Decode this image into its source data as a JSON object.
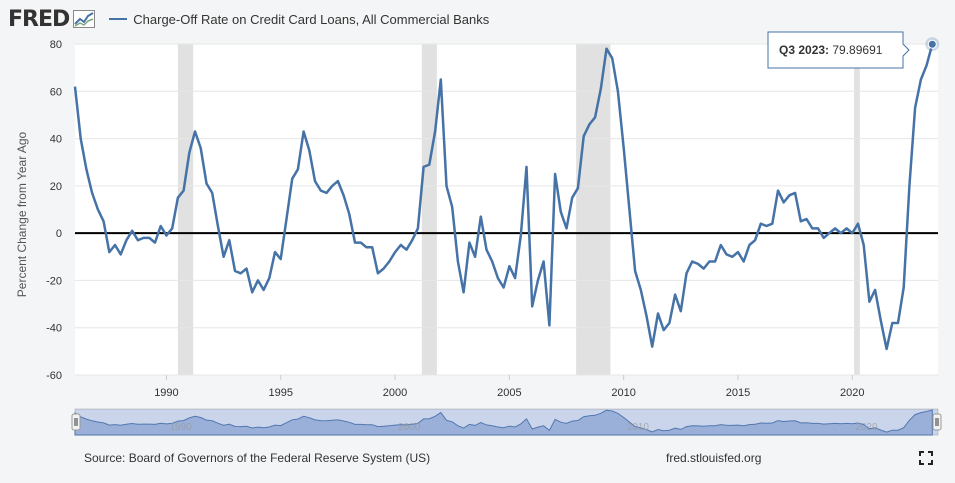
{
  "header": {
    "logo_text": "FRED",
    "legend_label": "Charge-Off Rate on Credit Card Loans, All Commercial Banks"
  },
  "colors": {
    "series": "#4572a7",
    "recession": "#e1e1e1",
    "plot_bg": "#ffffff",
    "zero_line": "#000000"
  },
  "icons": {
    "logo_graph": "line-graph-icon",
    "fullscreen": "fullscreen-icon",
    "left_handle": "navigator-left-handle",
    "right_handle": "navigator-right-handle"
  },
  "tooltip": {
    "label": "Q3 2023:",
    "value": "79.89691"
  },
  "footer": {
    "source": "Source: Board of Governors of the Federal Reserve System (US)",
    "site": "fred.stlouisfed.org"
  },
  "chart_data": {
    "type": "line",
    "title": "",
    "xlabel": "",
    "ylabel": "Percent Change from Year Ago",
    "xlim": [
      1986.0,
      2023.75
    ],
    "ylim": [
      -60,
      80
    ],
    "y_ticks": [
      80,
      60,
      40,
      20,
      0,
      -20,
      -40,
      -60
    ],
    "x_ticks": [
      1990,
      1995,
      2000,
      2005,
      2010,
      2015,
      2020
    ],
    "grid": true,
    "legend": "top-left",
    "recessions": [
      [
        1990.5,
        1991.17
      ],
      [
        2001.17,
        2001.83
      ],
      [
        2007.92,
        2009.42
      ],
      [
        2020.08,
        2020.33
      ]
    ],
    "navigator_labels": [
      "1990",
      "2000",
      "2010",
      "2020"
    ],
    "series": [
      {
        "name": "Charge-Off Rate on Credit Card Loans, All Commercial Banks",
        "points": [
          [
            1986.0,
            62
          ],
          [
            1986.25,
            40
          ],
          [
            1986.5,
            27
          ],
          [
            1986.75,
            17
          ],
          [
            1987.0,
            10
          ],
          [
            1987.25,
            5
          ],
          [
            1987.5,
            -8
          ],
          [
            1987.75,
            -5
          ],
          [
            1988.0,
            -9
          ],
          [
            1988.25,
            -3
          ],
          [
            1988.5,
            1
          ],
          [
            1988.75,
            -3
          ],
          [
            1989.0,
            -2
          ],
          [
            1989.25,
            -2
          ],
          [
            1989.5,
            -4
          ],
          [
            1989.75,
            3
          ],
          [
            1990.0,
            -1
          ],
          [
            1990.25,
            2
          ],
          [
            1990.5,
            15
          ],
          [
            1990.75,
            18
          ],
          [
            1991.0,
            34
          ],
          [
            1991.25,
            43
          ],
          [
            1991.5,
            36
          ],
          [
            1991.75,
            21
          ],
          [
            1992.0,
            17
          ],
          [
            1992.25,
            3
          ],
          [
            1992.5,
            -10
          ],
          [
            1992.75,
            -3
          ],
          [
            1993.0,
            -16
          ],
          [
            1993.25,
            -17
          ],
          [
            1993.5,
            -15
          ],
          [
            1993.75,
            -25
          ],
          [
            1994.0,
            -20
          ],
          [
            1994.25,
            -24
          ],
          [
            1994.5,
            -19
          ],
          [
            1994.75,
            -8
          ],
          [
            1995.0,
            -11
          ],
          [
            1995.25,
            6
          ],
          [
            1995.5,
            23
          ],
          [
            1995.75,
            27
          ],
          [
            1996.0,
            43
          ],
          [
            1996.25,
            35
          ],
          [
            1996.5,
            22
          ],
          [
            1996.75,
            18
          ],
          [
            1997.0,
            17
          ],
          [
            1997.25,
            20
          ],
          [
            1997.5,
            22
          ],
          [
            1997.75,
            16
          ],
          [
            1998.0,
            8
          ],
          [
            1998.25,
            -4
          ],
          [
            1998.5,
            -4
          ],
          [
            1998.75,
            -6
          ],
          [
            1999.0,
            -6
          ],
          [
            1999.25,
            -17
          ],
          [
            1999.5,
            -15
          ],
          [
            1999.75,
            -12
          ],
          [
            2000.0,
            -8
          ],
          [
            2000.25,
            -5
          ],
          [
            2000.5,
            -7
          ],
          [
            2000.75,
            -3
          ],
          [
            2001.0,
            2
          ],
          [
            2001.25,
            28
          ],
          [
            2001.5,
            29
          ],
          [
            2001.75,
            43
          ],
          [
            2002.0,
            65
          ],
          [
            2002.25,
            20
          ],
          [
            2002.5,
            11
          ],
          [
            2002.75,
            -12
          ],
          [
            2003.0,
            -25
          ],
          [
            2003.25,
            -4
          ],
          [
            2003.5,
            -10
          ],
          [
            2003.75,
            7
          ],
          [
            2004.0,
            -7
          ],
          [
            2004.25,
            -12
          ],
          [
            2004.5,
            -19
          ],
          [
            2004.75,
            -23
          ],
          [
            2005.0,
            -14
          ],
          [
            2005.25,
            -19
          ],
          [
            2005.5,
            -1
          ],
          [
            2005.75,
            28
          ],
          [
            2006.0,
            -31
          ],
          [
            2006.25,
            -20
          ],
          [
            2006.5,
            -12
          ],
          [
            2006.75,
            -39
          ],
          [
            2007.0,
            25
          ],
          [
            2007.25,
            9
          ],
          [
            2007.5,
            2
          ],
          [
            2007.75,
            15
          ],
          [
            2008.0,
            19
          ],
          [
            2008.25,
            41
          ],
          [
            2008.5,
            46
          ],
          [
            2008.75,
            49
          ],
          [
            2009.0,
            61
          ],
          [
            2009.25,
            78
          ],
          [
            2009.5,
            74
          ],
          [
            2009.75,
            60
          ],
          [
            2010.0,
            36
          ],
          [
            2010.25,
            10
          ],
          [
            2010.5,
            -16
          ],
          [
            2010.75,
            -24
          ],
          [
            2011.0,
            -35
          ],
          [
            2011.25,
            -48
          ],
          [
            2011.5,
            -34
          ],
          [
            2011.75,
            -41
          ],
          [
            2012.0,
            -38
          ],
          [
            2012.25,
            -26
          ],
          [
            2012.5,
            -33
          ],
          [
            2012.75,
            -17
          ],
          [
            2013.0,
            -12
          ],
          [
            2013.25,
            -13
          ],
          [
            2013.5,
            -15
          ],
          [
            2013.75,
            -12
          ],
          [
            2014.0,
            -12
          ],
          [
            2014.25,
            -5
          ],
          [
            2014.5,
            -9
          ],
          [
            2014.75,
            -10
          ],
          [
            2015.0,
            -8
          ],
          [
            2015.25,
            -12
          ],
          [
            2015.5,
            -5
          ],
          [
            2015.75,
            -3
          ],
          [
            2016.0,
            4
          ],
          [
            2016.25,
            3
          ],
          [
            2016.5,
            4
          ],
          [
            2016.75,
            18
          ],
          [
            2017.0,
            13
          ],
          [
            2017.25,
            16
          ],
          [
            2017.5,
            17
          ],
          [
            2017.75,
            5
          ],
          [
            2018.0,
            6
          ],
          [
            2018.25,
            2
          ],
          [
            2018.5,
            2
          ],
          [
            2018.75,
            -2
          ],
          [
            2019.0,
            0
          ],
          [
            2019.25,
            2
          ],
          [
            2019.5,
            0
          ],
          [
            2019.75,
            2
          ],
          [
            2020.0,
            0
          ],
          [
            2020.25,
            4
          ],
          [
            2020.5,
            -5
          ],
          [
            2020.75,
            -29
          ],
          [
            2021.0,
            -24
          ],
          [
            2021.25,
            -37
          ],
          [
            2021.5,
            -49
          ],
          [
            2021.75,
            -38
          ],
          [
            2022.0,
            -38
          ],
          [
            2022.25,
            -23
          ],
          [
            2022.5,
            20
          ],
          [
            2022.75,
            53
          ],
          [
            2023.0,
            65
          ],
          [
            2023.25,
            71
          ],
          [
            2023.5,
            79.89691
          ]
        ]
      }
    ]
  }
}
